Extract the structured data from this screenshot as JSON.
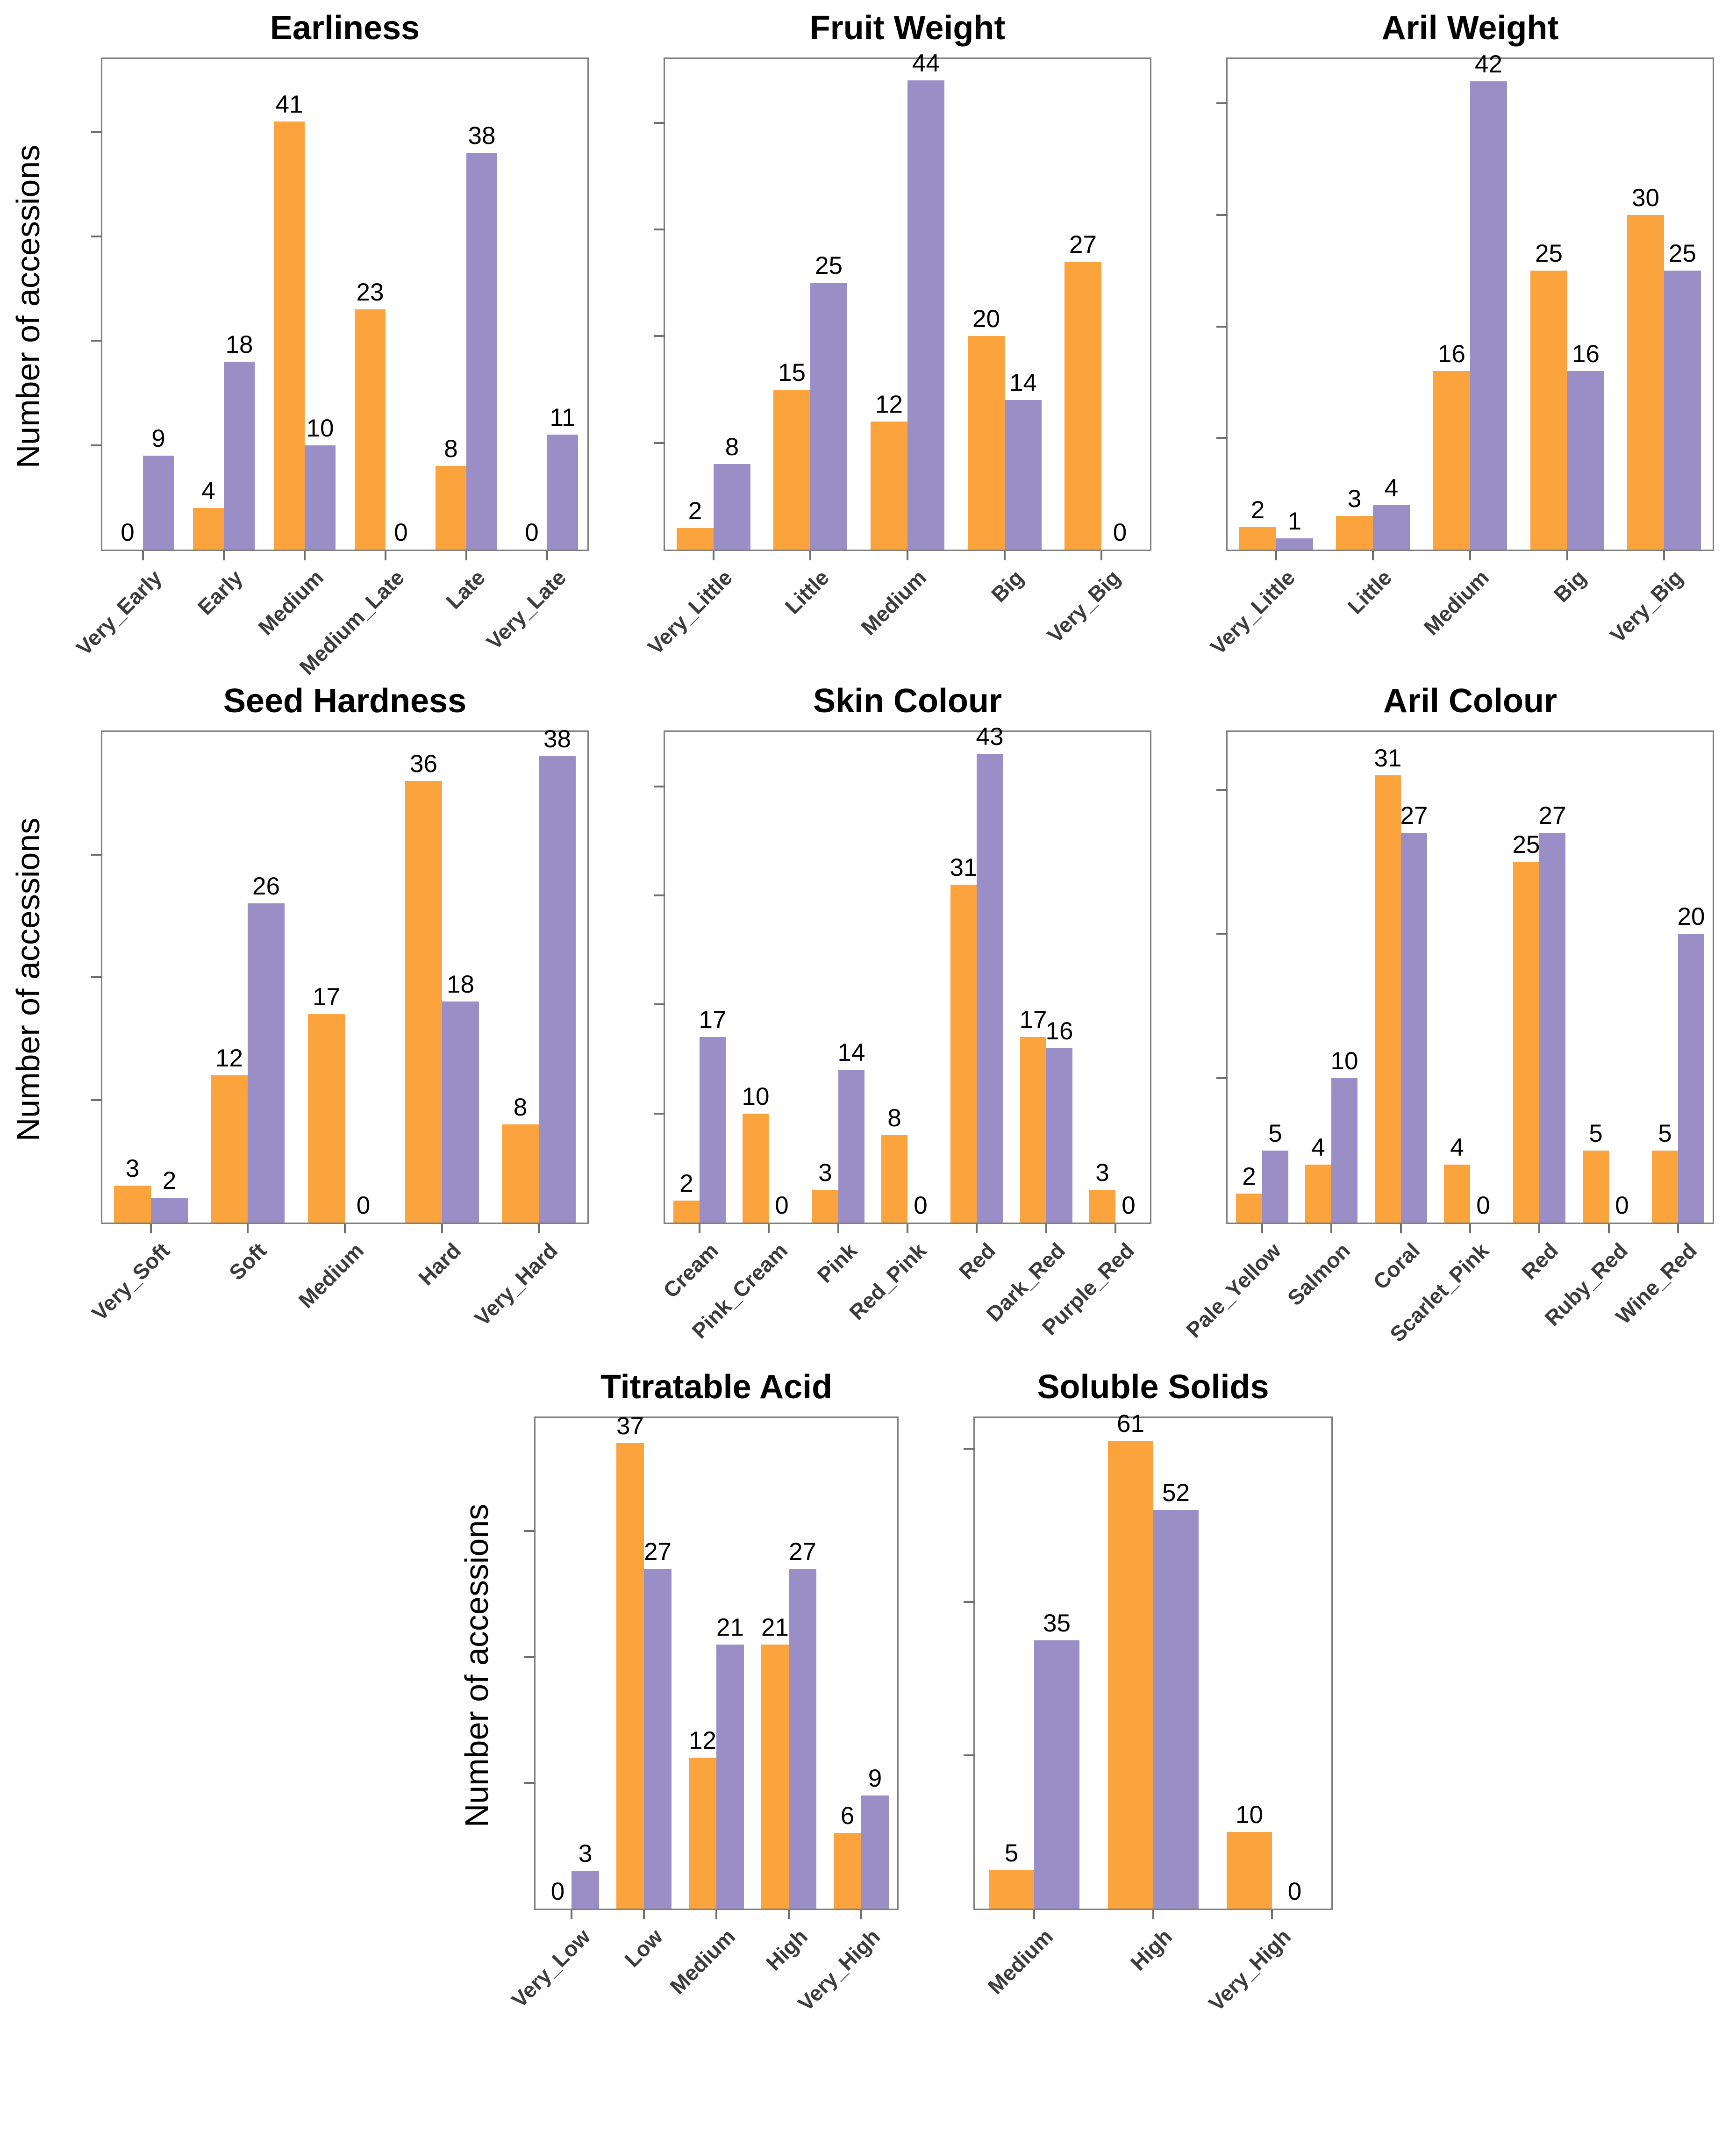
{
  "figure": {
    "ylabel": "Number of accessions",
    "background": "#ffffff"
  },
  "colors": {
    "series_orange": "#FBA33C",
    "series_purple": "#9A8EC6",
    "frame": "#7F7F7F",
    "tick": "#6E6E6E",
    "tick_label": "#3C3C3C",
    "value_label": "#000000",
    "title": "#000000"
  },
  "chart_data": [
    {
      "type": "bar",
      "title": "Earliness",
      "categories": [
        "Very_Early",
        "Early",
        "Medium",
        "Medium_Late",
        "Late",
        "Very_Late"
      ],
      "series": [
        {
          "name": "orange",
          "color_key": "series_orange",
          "values": [
            0,
            4,
            41,
            23,
            8,
            0
          ]
        },
        {
          "name": "purple",
          "color_key": "series_purple",
          "values": [
            9,
            18,
            10,
            0,
            38,
            11
          ]
        }
      ],
      "ylabel": "Number of accessions",
      "ylim": [
        0,
        47
      ],
      "ytick_step": 10,
      "grid": false,
      "legend": "none",
      "value_labels": true
    },
    {
      "type": "bar",
      "title": "Fruit Weight",
      "categories": [
        "Very_Little",
        "Little",
        "Medium",
        "Big",
        "Very_Big"
      ],
      "series": [
        {
          "name": "orange",
          "color_key": "series_orange",
          "values": [
            2,
            15,
            12,
            20,
            27
          ]
        },
        {
          "name": "purple",
          "color_key": "series_purple",
          "values": [
            8,
            25,
            44,
            14,
            0
          ]
        }
      ],
      "ylabel": "Number of accessions",
      "ylim": [
        0,
        46
      ],
      "ytick_step": 10,
      "grid": false,
      "legend": "none",
      "value_labels": true
    },
    {
      "type": "bar",
      "title": "Aril Weight",
      "categories": [
        "Very_Little",
        "Little",
        "Medium",
        "Big",
        "Very_Big"
      ],
      "series": [
        {
          "name": "orange",
          "color_key": "series_orange",
          "values": [
            2,
            3,
            16,
            25,
            30
          ]
        },
        {
          "name": "purple",
          "color_key": "series_purple",
          "values": [
            1,
            4,
            42,
            16,
            25
          ]
        }
      ],
      "ylabel": "Number of accessions",
      "ylim": [
        0,
        44
      ],
      "ytick_step": 10,
      "grid": false,
      "legend": "none",
      "value_labels": true
    },
    {
      "type": "bar",
      "title": "Seed Hardness",
      "categories": [
        "Very_Soft",
        "Soft",
        "Medium",
        "Hard",
        "Very_Hard"
      ],
      "series": [
        {
          "name": "orange",
          "color_key": "series_orange",
          "values": [
            3,
            12,
            17,
            36,
            8
          ]
        },
        {
          "name": "purple",
          "color_key": "series_purple",
          "values": [
            2,
            26,
            0,
            18,
            38
          ]
        }
      ],
      "ylabel": "Number of accessions",
      "ylim": [
        0,
        40
      ],
      "ytick_step": 10,
      "grid": false,
      "legend": "none",
      "value_labels": true
    },
    {
      "type": "bar",
      "title": "Skin Colour",
      "categories": [
        "Cream",
        "Pink_Cream",
        "Pink",
        "Red_Pink",
        "Red",
        "Dark_Red",
        "Purple_Red"
      ],
      "series": [
        {
          "name": "orange",
          "color_key": "series_orange",
          "values": [
            2,
            10,
            3,
            8,
            31,
            17,
            3
          ]
        },
        {
          "name": "purple",
          "color_key": "series_purple",
          "values": [
            17,
            0,
            14,
            0,
            43,
            16,
            0
          ]
        }
      ],
      "ylabel": "Number of accessions",
      "ylim": [
        0,
        45
      ],
      "ytick_step": 10,
      "grid": false,
      "legend": "none",
      "value_labels": true
    },
    {
      "type": "bar",
      "title": "Aril Colour",
      "categories": [
        "Pale_Yellow",
        "Salmon",
        "Coral",
        "Scarlet_Pink",
        "Red",
        "Ruby_Red",
        "Wine_Red"
      ],
      "series": [
        {
          "name": "orange",
          "color_key": "series_orange",
          "values": [
            2,
            4,
            31,
            4,
            25,
            5,
            5
          ]
        },
        {
          "name": "purple",
          "color_key": "series_purple",
          "values": [
            5,
            10,
            27,
            0,
            27,
            0,
            20
          ]
        }
      ],
      "ylabel": "Number of accessions",
      "ylim": [
        0,
        34
      ],
      "ytick_step": 10,
      "grid": false,
      "legend": "none",
      "value_labels": true
    },
    {
      "type": "bar",
      "title": "Titratable Acid",
      "categories": [
        "Very_Low",
        "Low",
        "Medium",
        "High",
        "Very_High"
      ],
      "series": [
        {
          "name": "orange",
          "color_key": "series_orange",
          "values": [
            0,
            37,
            12,
            21,
            6
          ]
        },
        {
          "name": "purple",
          "color_key": "series_purple",
          "values": [
            3,
            27,
            21,
            27,
            9
          ]
        }
      ],
      "ylabel": "Number of accessions",
      "ylim": [
        0,
        39
      ],
      "ytick_step": 10,
      "grid": false,
      "legend": "none",
      "value_labels": true
    },
    {
      "type": "bar",
      "title": "Soluble Solids",
      "categories": [
        "Medium",
        "High",
        "Very_High"
      ],
      "series": [
        {
          "name": "orange",
          "color_key": "series_orange",
          "values": [
            5,
            61,
            10
          ]
        },
        {
          "name": "purple",
          "color_key": "series_purple",
          "values": [
            35,
            52,
            0
          ]
        }
      ],
      "ylabel": "Number of accessions",
      "ylim": [
        0,
        64
      ],
      "ytick_step": 20,
      "grid": false,
      "legend": "none",
      "value_labels": true
    }
  ]
}
